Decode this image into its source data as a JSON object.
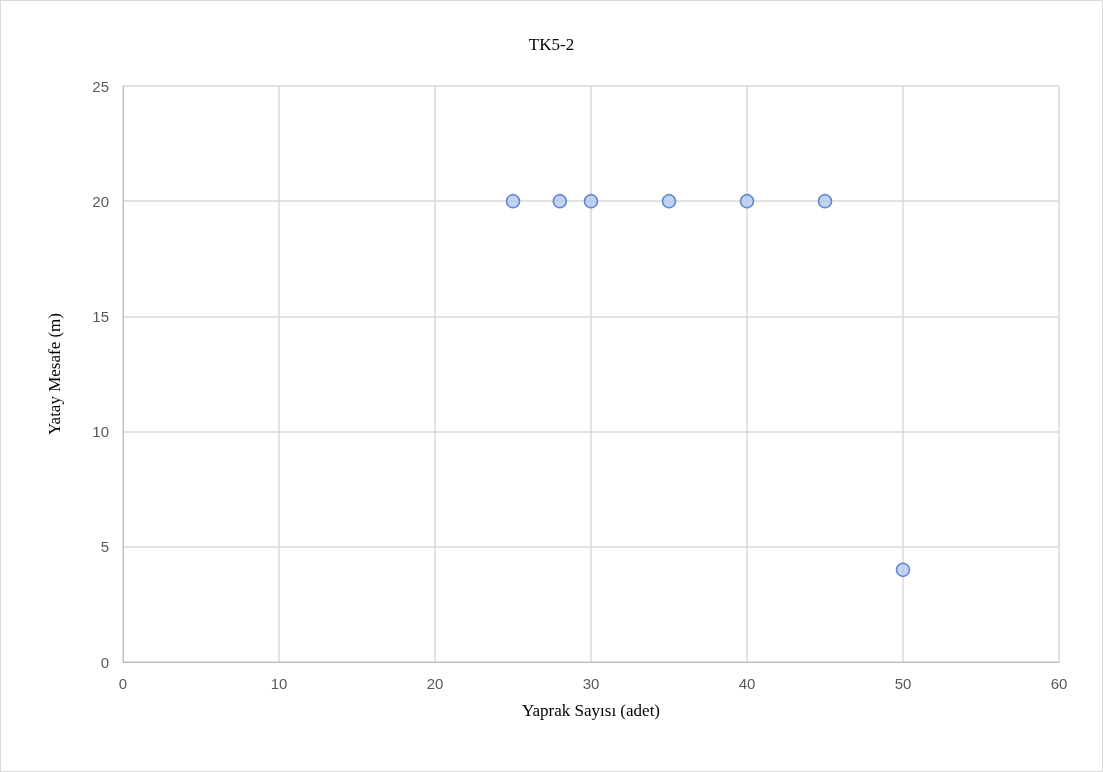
{
  "chart_data": {
    "type": "scatter",
    "title": "TK5-2",
    "xlabel": "Yaprak Sayısı (adet)",
    "ylabel": "Yatay Mesafe (m)",
    "x": [
      25,
      28,
      30,
      35,
      40,
      45,
      50
    ],
    "values": [
      20,
      20,
      20,
      20,
      20,
      20,
      4
    ],
    "color": "#b4c9ef",
    "xlim": [
      0,
      60
    ],
    "xticks": [
      0,
      10,
      20,
      30,
      40,
      50,
      60
    ],
    "ylim": [
      0,
      25
    ],
    "yticks": [
      0,
      5,
      10,
      15,
      20,
      25
    ],
    "grid": true,
    "marker": "circle"
  }
}
